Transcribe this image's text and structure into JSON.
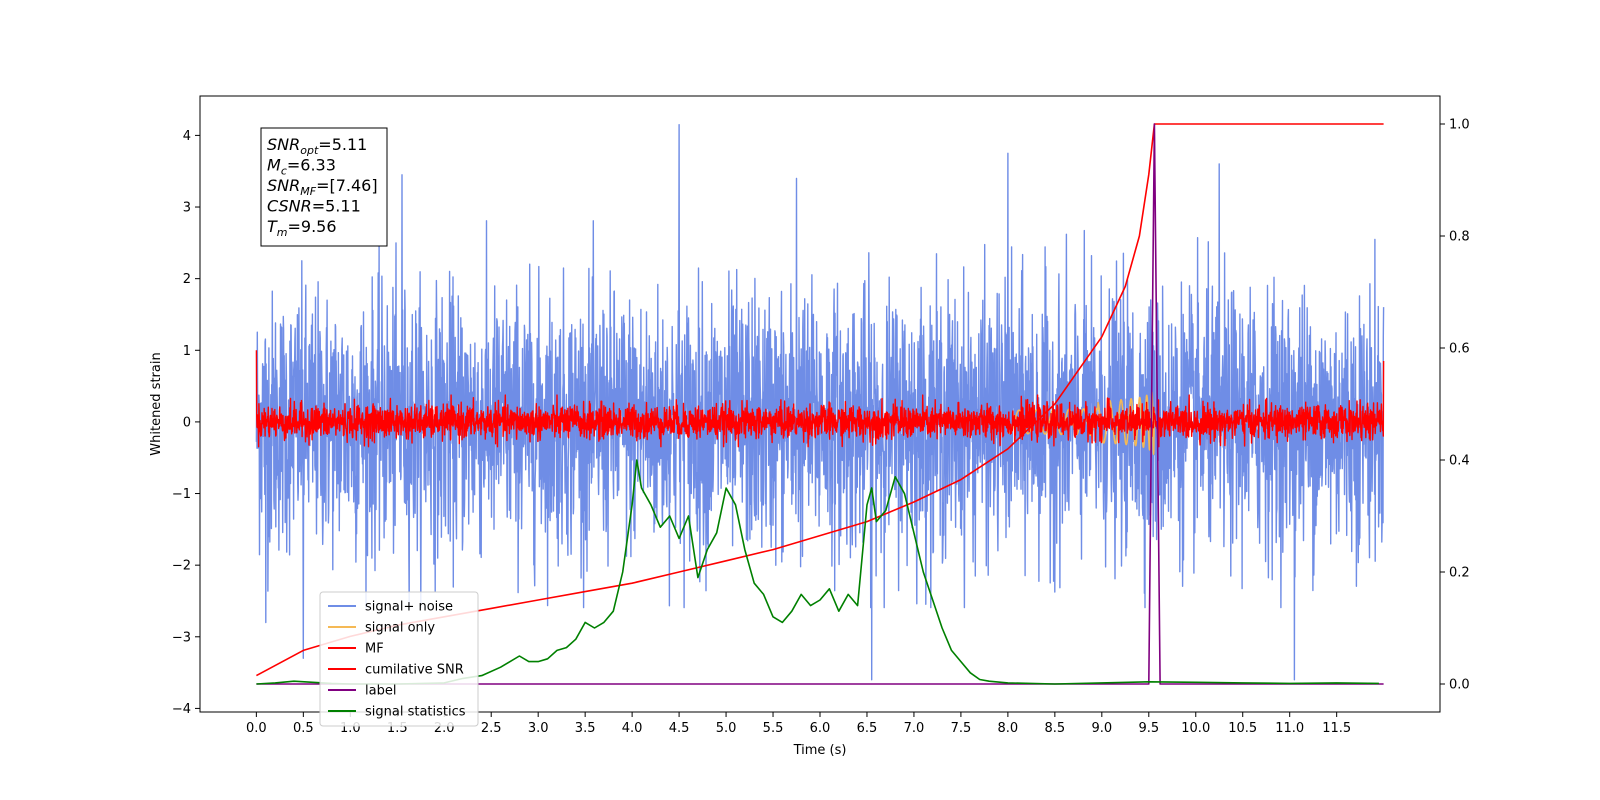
{
  "chart_data": {
    "type": "line",
    "title": "",
    "xlabel": "Time (s)",
    "ylabel": "Whitened strain",
    "ylabel_right": "",
    "xlim": [
      -0.6,
      12.6
    ],
    "ylim_left": [
      -4.05,
      4.55
    ],
    "ylim_right": [
      -0.05,
      1.05
    ],
    "grid": false,
    "legend_placement": "lower-left",
    "x_ticks": [
      0.0,
      0.5,
      1.0,
      1.5,
      2.0,
      2.5,
      3.0,
      3.5,
      4.0,
      4.5,
      5.0,
      5.5,
      6.0,
      6.5,
      7.0,
      7.5,
      8.0,
      8.5,
      9.0,
      9.5,
      10.0,
      10.5,
      11.0,
      11.5
    ],
    "x_tick_labels": [
      "0.0",
      "0.5",
      "1.0",
      "1.5",
      "2.0",
      "2.5",
      "3.0",
      "3.5",
      "4.0",
      "4.5",
      "5.0",
      "5.5",
      "6.0",
      "6.5",
      "7.0",
      "7.5",
      "8.0",
      "8.5",
      "9.0",
      "9.5",
      "10.0",
      "10.5",
      "11.0",
      "11.5"
    ],
    "y_left_ticks": [
      -4,
      -3,
      -2,
      -1,
      0,
      1,
      2,
      3,
      4
    ],
    "y_left_tick_labels": [
      "−4",
      "−3",
      "−2",
      "−1",
      "0",
      "1",
      "2",
      "3",
      "4"
    ],
    "y_right_ticks": [
      0.0,
      0.2,
      0.4,
      0.6,
      0.8,
      1.0
    ],
    "y_right_tick_labels": [
      "0.0",
      "0.2",
      "0.4",
      "0.6",
      "0.8",
      "1.0"
    ],
    "annotation_lines": [
      {
        "main": "SNR",
        "sub": "opt",
        "rest": "=5.11"
      },
      {
        "main": "M",
        "sub": "c",
        "rest": "=6.33"
      },
      {
        "main": "SNR",
        "sub": "MF",
        "rest": "=[7.46]"
      },
      {
        "main": "CSNR",
        "sub": "",
        "rest": "=5.11"
      },
      {
        "main": "T",
        "sub": "m",
        "rest": "=9.56"
      }
    ],
    "legend": [
      {
        "label": "signal+ noise",
        "color": "#6f8de6"
      },
      {
        "label": "signal only",
        "color": "#f5b955"
      },
      {
        "label": "MF",
        "color": "#ff0000"
      },
      {
        "label": "cumilative SNR",
        "color": "#ff0000"
      },
      {
        "label": "label",
        "color": "#800080"
      },
      {
        "label": "signal statistics",
        "color": "#008000"
      }
    ],
    "series": [
      {
        "name": "signal+ noise",
        "axis": "left",
        "color": "#6f8de6",
        "kind": "noise",
        "x_range": [
          0.0,
          12.0
        ],
        "std": 0.9,
        "extremes": [
          [
            4.5,
            4.15
          ],
          [
            6.55,
            -3.6
          ],
          [
            11.05,
            -3.6
          ],
          [
            0.5,
            -3.3
          ],
          [
            0.1,
            -2.8
          ],
          [
            8.0,
            3.75
          ],
          [
            10.25,
            3.6
          ],
          [
            5.75,
            3.4
          ],
          [
            1.55,
            3.45
          ]
        ]
      },
      {
        "name": "signal only",
        "axis": "left",
        "color": "#f5b955",
        "kind": "chirp",
        "x_range": [
          8.0,
          9.56
        ],
        "peak_t": 9.56,
        "amplitude": 0.55
      },
      {
        "name": "MF",
        "axis": "left",
        "color": "#ff0000",
        "kind": "noise",
        "x_range": [
          0.0,
          12.0
        ],
        "std": 0.12,
        "extremes": [
          [
            0.0,
            1.0
          ],
          [
            12.0,
            0.85
          ]
        ]
      },
      {
        "name": "cumilative SNR",
        "axis": "right",
        "color": "#ff0000",
        "x": [
          0.0,
          0.5,
          1.0,
          1.5,
          2.0,
          2.5,
          3.0,
          3.5,
          4.0,
          4.5,
          5.0,
          5.5,
          6.0,
          6.5,
          7.0,
          7.5,
          8.0,
          8.5,
          9.0,
          9.25,
          9.4,
          9.5,
          9.56,
          9.57,
          12.0
        ],
        "values": [
          0.015,
          0.06,
          0.085,
          0.105,
          0.12,
          0.135,
          0.15,
          0.165,
          0.18,
          0.2,
          0.22,
          0.24,
          0.265,
          0.29,
          0.325,
          0.365,
          0.42,
          0.5,
          0.62,
          0.71,
          0.8,
          0.91,
          1.0,
          1.0,
          1.0
        ]
      },
      {
        "name": "label",
        "axis": "right",
        "color": "#800080",
        "x": [
          0.0,
          9.5,
          9.56,
          9.62,
          12.0
        ],
        "values": [
          0.0,
          0.0,
          1.0,
          0.0,
          0.0
        ]
      },
      {
        "name": "signal statistics",
        "axis": "right",
        "color": "#008000",
        "x": [
          0.0,
          0.2,
          0.4,
          0.6,
          0.8,
          1.0,
          1.5,
          2.0,
          2.2,
          2.4,
          2.6,
          2.8,
          2.9,
          3.0,
          3.1,
          3.2,
          3.3,
          3.4,
          3.5,
          3.6,
          3.7,
          3.8,
          3.9,
          4.0,
          4.05,
          4.1,
          4.2,
          4.3,
          4.4,
          4.5,
          4.6,
          4.7,
          4.8,
          4.9,
          5.0,
          5.1,
          5.2,
          5.3,
          5.4,
          5.5,
          5.6,
          5.7,
          5.8,
          5.9,
          6.0,
          6.1,
          6.2,
          6.3,
          6.4,
          6.5,
          6.55,
          6.6,
          6.7,
          6.8,
          6.9,
          7.0,
          7.1,
          7.2,
          7.3,
          7.4,
          7.5,
          7.6,
          7.7,
          7.8,
          8.0,
          8.5,
          9.0,
          9.5,
          10.0,
          10.5,
          11.0,
          11.5,
          11.95
        ],
        "values": [
          0.0,
          0.002,
          0.005,
          0.003,
          0.001,
          0.0,
          0.0,
          0.002,
          0.01,
          0.015,
          0.03,
          0.05,
          0.04,
          0.04,
          0.045,
          0.06,
          0.065,
          0.08,
          0.11,
          0.1,
          0.11,
          0.13,
          0.2,
          0.32,
          0.4,
          0.35,
          0.32,
          0.28,
          0.3,
          0.26,
          0.3,
          0.19,
          0.24,
          0.27,
          0.35,
          0.32,
          0.24,
          0.18,
          0.16,
          0.12,
          0.11,
          0.13,
          0.16,
          0.14,
          0.15,
          0.17,
          0.13,
          0.16,
          0.14,
          0.32,
          0.35,
          0.29,
          0.31,
          0.37,
          0.34,
          0.27,
          0.2,
          0.15,
          0.1,
          0.06,
          0.04,
          0.02,
          0.008,
          0.005,
          0.002,
          0.0,
          0.002,
          0.004,
          0.003,
          0.002,
          0.001,
          0.002,
          0.001
        ]
      }
    ]
  }
}
